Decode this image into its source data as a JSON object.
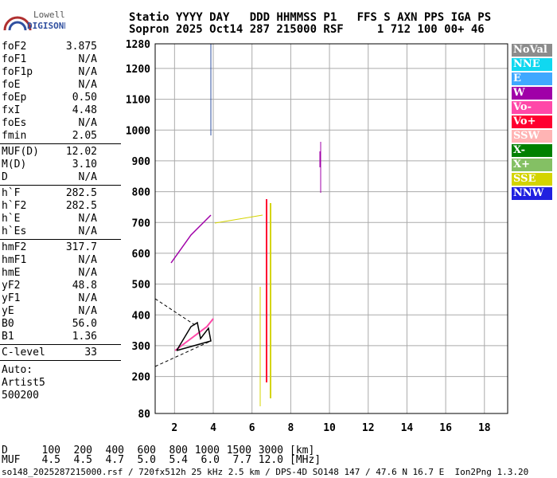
{
  "logo": {
    "line1": "Lowell",
    "line2": "DIGISONDE"
  },
  "header": {
    "line1": "Statio YYYY DAY   DDD HHMMSS P1   FFS S AXN PPS IGA PS",
    "line2": "Sopron 2025 Oct14 287 215000 RSF     1 712 100 00+ 46"
  },
  "parameters": [
    [
      [
        "foF2",
        "3.875"
      ],
      [
        "foF1",
        "N/A"
      ],
      [
        "foF1p",
        "N/A"
      ],
      [
        "foE",
        "N/A"
      ],
      [
        "foEp",
        "0.50"
      ],
      [
        "fxI",
        "4.48"
      ],
      [
        "foEs",
        "N/A"
      ],
      [
        "fmin",
        "2.05"
      ]
    ],
    [
      [
        "MUF(D)",
        "12.02"
      ],
      [
        "M(D)",
        "3.10"
      ],
      [
        "D",
        "N/A"
      ]
    ],
    [
      [
        "h`F",
        "282.5"
      ],
      [
        "h`F2",
        "282.5"
      ],
      [
        "h`E",
        "N/A"
      ],
      [
        "h`Es",
        "N/A"
      ]
    ],
    [
      [
        "hmF2",
        "317.7"
      ],
      [
        "hmF1",
        "N/A"
      ],
      [
        "hmE",
        "N/A"
      ],
      [
        "yF2",
        "48.8"
      ],
      [
        "yF1",
        "N/A"
      ],
      [
        "yE",
        "N/A"
      ],
      [
        "B0",
        "56.0"
      ],
      [
        "B1",
        "1.36"
      ]
    ],
    [
      [
        "C-level",
        "33"
      ]
    ]
  ],
  "auto": [
    "Auto:",
    "Artist5",
    "500200"
  ],
  "plot": {
    "xlim": [
      1,
      19.2
    ],
    "ylim": [
      80,
      1280
    ],
    "xticks": [
      2,
      4,
      6,
      8,
      10,
      12,
      14,
      16,
      18
    ],
    "yticks": [
      80,
      200,
      300,
      400,
      500,
      600,
      700,
      800,
      900,
      1000,
      1100,
      1200,
      1280
    ]
  },
  "legend": [
    {
      "name": "NoVal",
      "color": "#8c8c8c"
    },
    {
      "name": "NNE",
      "color": "#10d8f0"
    },
    {
      "name": "E",
      "color": "#40a8ff"
    },
    {
      "name": "W",
      "color": "#a000a8"
    },
    {
      "name": "Vo-",
      "color": "#ff48a8"
    },
    {
      "name": "Vo+",
      "color": "#ff0030"
    },
    {
      "name": "SSW",
      "color": "#ffb4b4"
    },
    {
      "name": "X-",
      "color": "#008000"
    },
    {
      "name": "X+",
      "color": "#84c064"
    },
    {
      "name": "SSE",
      "color": "#d4d400"
    },
    {
      "name": "NNW",
      "color": "#2020e0"
    }
  ],
  "muf_table": {
    "d_label": "D",
    "d_values": [
      "100",
      "200",
      "400",
      "600",
      "800",
      "1000",
      "1500",
      "3000"
    ],
    "d_unit": "[km]",
    "muf_label": "MUF",
    "muf_values": [
      "4.5",
      "4.5",
      "4.7",
      "5.0",
      "5.4",
      "6.0",
      "7.7",
      "12.0"
    ],
    "muf_unit": "[MHz]"
  },
  "footer": "so148_2025287215000.rsf / 720fx512h 25 kHz 2.5 km / DPS-4D SO148 147 / 47.6 N 16.7 E  Ion2Png 1.3.20"
}
